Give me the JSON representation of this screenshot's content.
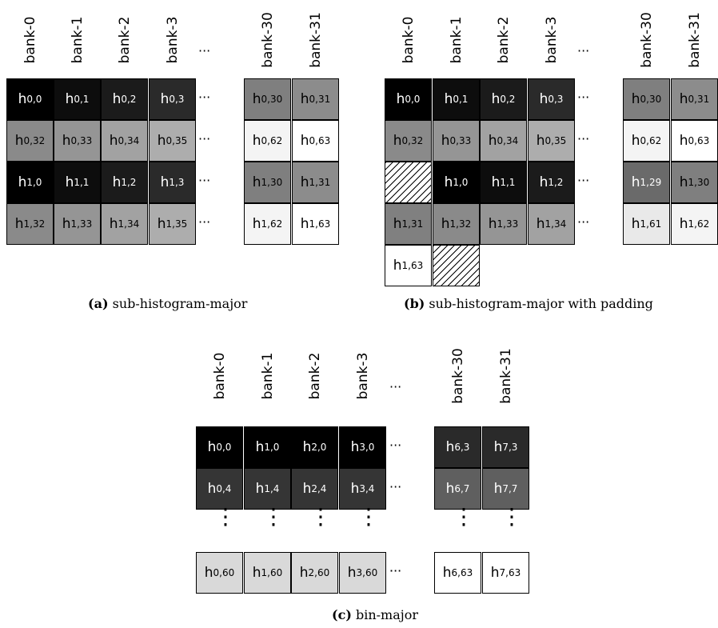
{
  "dots": "···",
  "vdots": "⋮",
  "panels": [
    {
      "caption_tag": "(a)",
      "caption_text": "sub-histogram-major",
      "headers": [
        "bank-0",
        "bank-1",
        "bank-2",
        "bank-3",
        "bank-30",
        "bank-31"
      ],
      "rows": [
        [
          [
            "h",
            "0,0",
            "#000000"
          ],
          [
            "h",
            "0,1",
            "#0d0d0d"
          ],
          [
            "h",
            "0,2",
            "#1b1b1b"
          ],
          [
            "h",
            "0,3",
            "#2a2a2a"
          ],
          [
            "h",
            "0,30",
            "#7f7f7f"
          ],
          [
            "h",
            "0,31",
            "#8c8c8c"
          ]
        ],
        [
          [
            "h",
            "0,32",
            "#8a8a8a"
          ],
          [
            "h",
            "0,33",
            "#959595"
          ],
          [
            "h",
            "0,34",
            "#a2a2a2"
          ],
          [
            "h",
            "0,35",
            "#adadad"
          ],
          [
            "h",
            "0,62",
            "#f4f4f4"
          ],
          [
            "h",
            "0,63",
            "#ffffff"
          ]
        ],
        [
          [
            "h",
            "1,0",
            "#000000"
          ],
          [
            "h",
            "1,1",
            "#0d0d0d"
          ],
          [
            "h",
            "1,2",
            "#1b1b1b"
          ],
          [
            "h",
            "1,3",
            "#2a2a2a"
          ],
          [
            "h",
            "1,30",
            "#7f7f7f"
          ],
          [
            "h",
            "1,31",
            "#8c8c8c"
          ]
        ],
        [
          [
            "h",
            "1,32",
            "#8a8a8a"
          ],
          [
            "h",
            "1,33",
            "#959595"
          ],
          [
            "h",
            "1,34",
            "#a2a2a2"
          ],
          [
            "h",
            "1,35",
            "#adadad"
          ],
          [
            "h",
            "1,62",
            "#f4f4f4"
          ],
          [
            "h",
            "1,63",
            "#ffffff"
          ]
        ]
      ]
    },
    {
      "caption_tag": "(b)",
      "caption_text": "sub-histogram-major with padding",
      "headers": [
        "bank-0",
        "bank-1",
        "bank-2",
        "bank-3",
        "bank-30",
        "bank-31"
      ],
      "rows": [
        [
          [
            "h",
            "0,0",
            "#000000"
          ],
          [
            "h",
            "0,1",
            "#0d0d0d"
          ],
          [
            "h",
            "0,2",
            "#1b1b1b"
          ],
          [
            "h",
            "0,3",
            "#2a2a2a"
          ],
          [
            "h",
            "0,30",
            "#7f7f7f"
          ],
          [
            "h",
            "0,31",
            "#8c8c8c"
          ]
        ],
        [
          [
            "h",
            "0,32",
            "#8a8a8a"
          ],
          [
            "h",
            "0,33",
            "#959595"
          ],
          [
            "h",
            "0,34",
            "#a2a2a2"
          ],
          [
            "h",
            "0,35",
            "#adadad"
          ],
          [
            "h",
            "0,62",
            "#f4f4f4"
          ],
          [
            "h",
            "0,63",
            "#ffffff"
          ]
        ],
        [
          null,
          [
            "h",
            "1,0",
            "#000000"
          ],
          [
            "h",
            "1,1",
            "#0d0d0d"
          ],
          [
            "h",
            "1,2",
            "#1b1b1b"
          ],
          [
            "h",
            "1,29",
            "#6a6a6a"
          ],
          [
            "h",
            "1,30",
            "#7f7f7f"
          ]
        ],
        [
          [
            "h",
            "1,31",
            "#808080"
          ],
          [
            "h",
            "1,32",
            "#8a8a8a"
          ],
          [
            "h",
            "1,33",
            "#959595"
          ],
          [
            "h",
            "1,34",
            "#a2a2a2"
          ],
          [
            "h",
            "1,61",
            "#e9e9e9"
          ],
          [
            "h",
            "1,62",
            "#f4f4f4"
          ]
        ],
        [
          [
            "h",
            "1,63",
            "#ffffff"
          ],
          null
        ]
      ]
    },
    {
      "caption_tag": "(c)",
      "caption_text": "bin-major",
      "headers": [
        "bank-0",
        "bank-1",
        "bank-2",
        "bank-3",
        "bank-30",
        "bank-31"
      ],
      "rows": [
        [
          [
            "h",
            "0,0",
            "#000000"
          ],
          [
            "h",
            "1,0",
            "#000000"
          ],
          [
            "h",
            "2,0",
            "#000000"
          ],
          [
            "h",
            "3,0",
            "#000000"
          ],
          [
            "h",
            "6,3",
            "#2a2a2a"
          ],
          [
            "h",
            "7,3",
            "#2a2a2a"
          ]
        ],
        [
          [
            "h",
            "0,4",
            "#353535"
          ],
          [
            "h",
            "1,4",
            "#353535"
          ],
          [
            "h",
            "2,4",
            "#353535"
          ],
          [
            "h",
            "3,4",
            "#353535"
          ],
          [
            "h",
            "6,7",
            "#5f5f5f"
          ],
          [
            "h",
            "7,7",
            "#5f5f5f"
          ]
        ],
        [
          [
            "h",
            "0,60",
            "#d9d9d9"
          ],
          [
            "h",
            "1,60",
            "#d9d9d9"
          ],
          [
            "h",
            "2,60",
            "#d9d9d9"
          ],
          [
            "h",
            "3,60",
            "#d9d9d9"
          ],
          [
            "h",
            "6,63",
            "#ffffff"
          ],
          [
            "h",
            "7,63",
            "#ffffff"
          ]
        ]
      ]
    }
  ]
}
